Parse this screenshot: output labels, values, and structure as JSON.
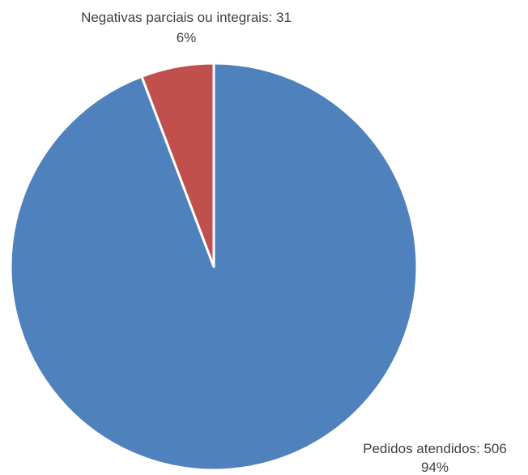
{
  "chart_data": {
    "type": "pie",
    "slices": [
      {
        "name": "Pedidos atendidos",
        "value": 506,
        "percent_label": "94%",
        "color": "#4F81BD"
      },
      {
        "name": "Negativas parciais ou integrais",
        "value": 31,
        "percent_label": "6%",
        "color": "#C0504D"
      }
    ],
    "labels": {
      "slice_0_line1": "Pedidos atendidos: 506",
      "slice_0_line2": "94%",
      "slice_1_line1": "Negativas parciais ou integrais: 31",
      "slice_1_line2": "6%"
    },
    "legend": "none",
    "start_angle": "12 o'clock",
    "direction": "clockwise"
  }
}
